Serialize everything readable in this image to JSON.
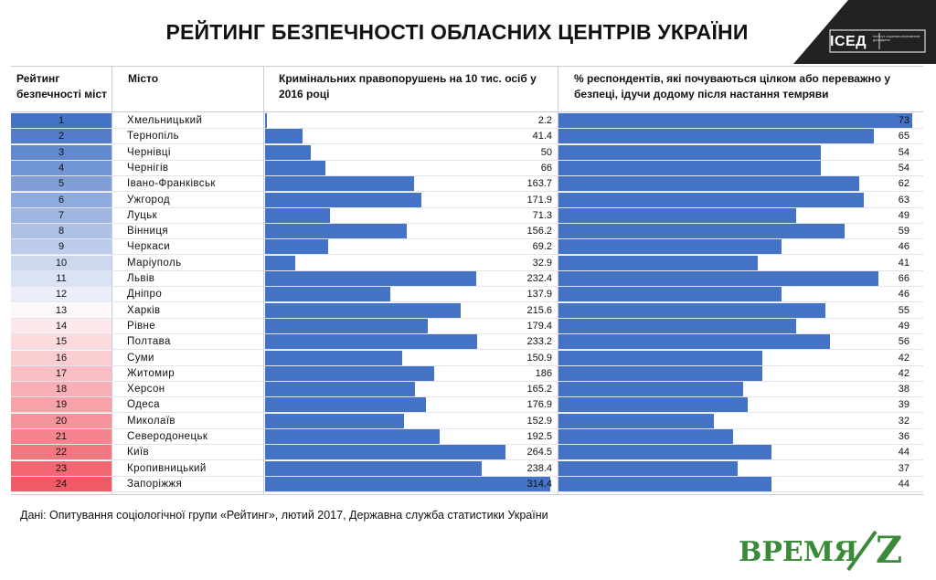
{
  "title": "РЕЙТИНГ БЕЗПЕЧНОСТІ ОБЛАСНИХ ЦЕНТРІВ УКРАЇНИ",
  "logo": {
    "text": "ІСЕД",
    "subtext": "Інститут соціально-економічних досліджень",
    "icon": "ised-logo"
  },
  "headers": {
    "rank": "Рейтинг безпечності міст",
    "city": "Місто",
    "crime": "Кримінальних правопорушень на 10 тис. осіб у 2016 році",
    "safety": "% респондентів, які почуваються цілком або переважно у безпеці, ідучи додому після настання темряви"
  },
  "colors": {
    "bar": "#4472c4",
    "rank_gradient_top": "#4472c4",
    "rank_gradient_mid": "#ffffff",
    "rank_gradient_bottom": "#f05a66"
  },
  "chart_data": {
    "type": "table",
    "columns": [
      "Рейтинг безпечності міст",
      "Місто",
      "Кримінальних правопорушень на 10 тис. осіб у 2016 році",
      "% респондентів, які почуваються цілком або переважно у безпеці, ідучи додому після настання темряви"
    ],
    "crime_max": 320,
    "safety_max": 75,
    "rows": [
      {
        "rank": "1",
        "city": "Хмельницький",
        "crime": 2.2,
        "safety": 73
      },
      {
        "rank": "2",
        "city": "Тернопіль",
        "crime": 41.4,
        "safety": 65
      },
      {
        "rank": "3",
        "city": "Чернівці",
        "crime": 50,
        "safety": 54
      },
      {
        "rank": "4",
        "city": "Чернігів",
        "crime": 66,
        "safety": 54
      },
      {
        "rank": "5",
        "city": "Івано-Франківськ",
        "crime": 163.7,
        "safety": 62
      },
      {
        "rank": "6",
        "city": "Ужгород",
        "crime": 171.9,
        "safety": 63
      },
      {
        "rank": "7",
        "city": "Луцьк",
        "crime": 71.3,
        "safety": 49
      },
      {
        "rank": "8",
        "city": "Вінниця",
        "crime": 156.2,
        "safety": 59
      },
      {
        "rank": "9",
        "city": "Черкаси",
        "crime": 69.2,
        "safety": 46
      },
      {
        "rank": "10",
        "city": "Маріуполь",
        "crime": 32.9,
        "safety": 41
      },
      {
        "rank": "11",
        "city": "Львів",
        "crime": 232.4,
        "safety": 66
      },
      {
        "rank": "12",
        "city": "Дніпро",
        "crime": 137.9,
        "safety": 46
      },
      {
        "rank": "13",
        "city": "Харків",
        "crime": 215.6,
        "safety": 55
      },
      {
        "rank": "14",
        "city": "Рівне",
        "crime": 179.4,
        "safety": 49
      },
      {
        "rank": "15",
        "city": "Полтава",
        "crime": 233.2,
        "safety": 56
      },
      {
        "rank": "16",
        "city": "Суми",
        "crime": 150.9,
        "safety": 42
      },
      {
        "rank": "17",
        "city": "Житомир",
        "crime": 186,
        "safety": 42
      },
      {
        "rank": "18",
        "city": "Херсон",
        "crime": 165.2,
        "safety": 38
      },
      {
        "rank": "19",
        "city": "Одеса",
        "crime": 176.9,
        "safety": 39
      },
      {
        "rank": "20",
        "city": "Миколаїв",
        "crime": 152.9,
        "safety": 32
      },
      {
        "rank": "21",
        "city": "Северодонецьк",
        "crime": 192.5,
        "safety": 36
      },
      {
        "rank": "22",
        "city": "Київ",
        "crime": 264.5,
        "safety": 44
      },
      {
        "rank": "23",
        "city": "Кропивницький",
        "crime": 238.4,
        "safety": 37
      },
      {
        "rank": "24",
        "city": "Запоріжжя",
        "crime": 314.4,
        "safety": 44
      }
    ]
  },
  "source": "Дані: Опитування соціологічної групи «Рейтинг», лютий 2017, Державна служба статистики України",
  "watermark": {
    "text": "ВРЕМЯ",
    "letter": "Z"
  }
}
